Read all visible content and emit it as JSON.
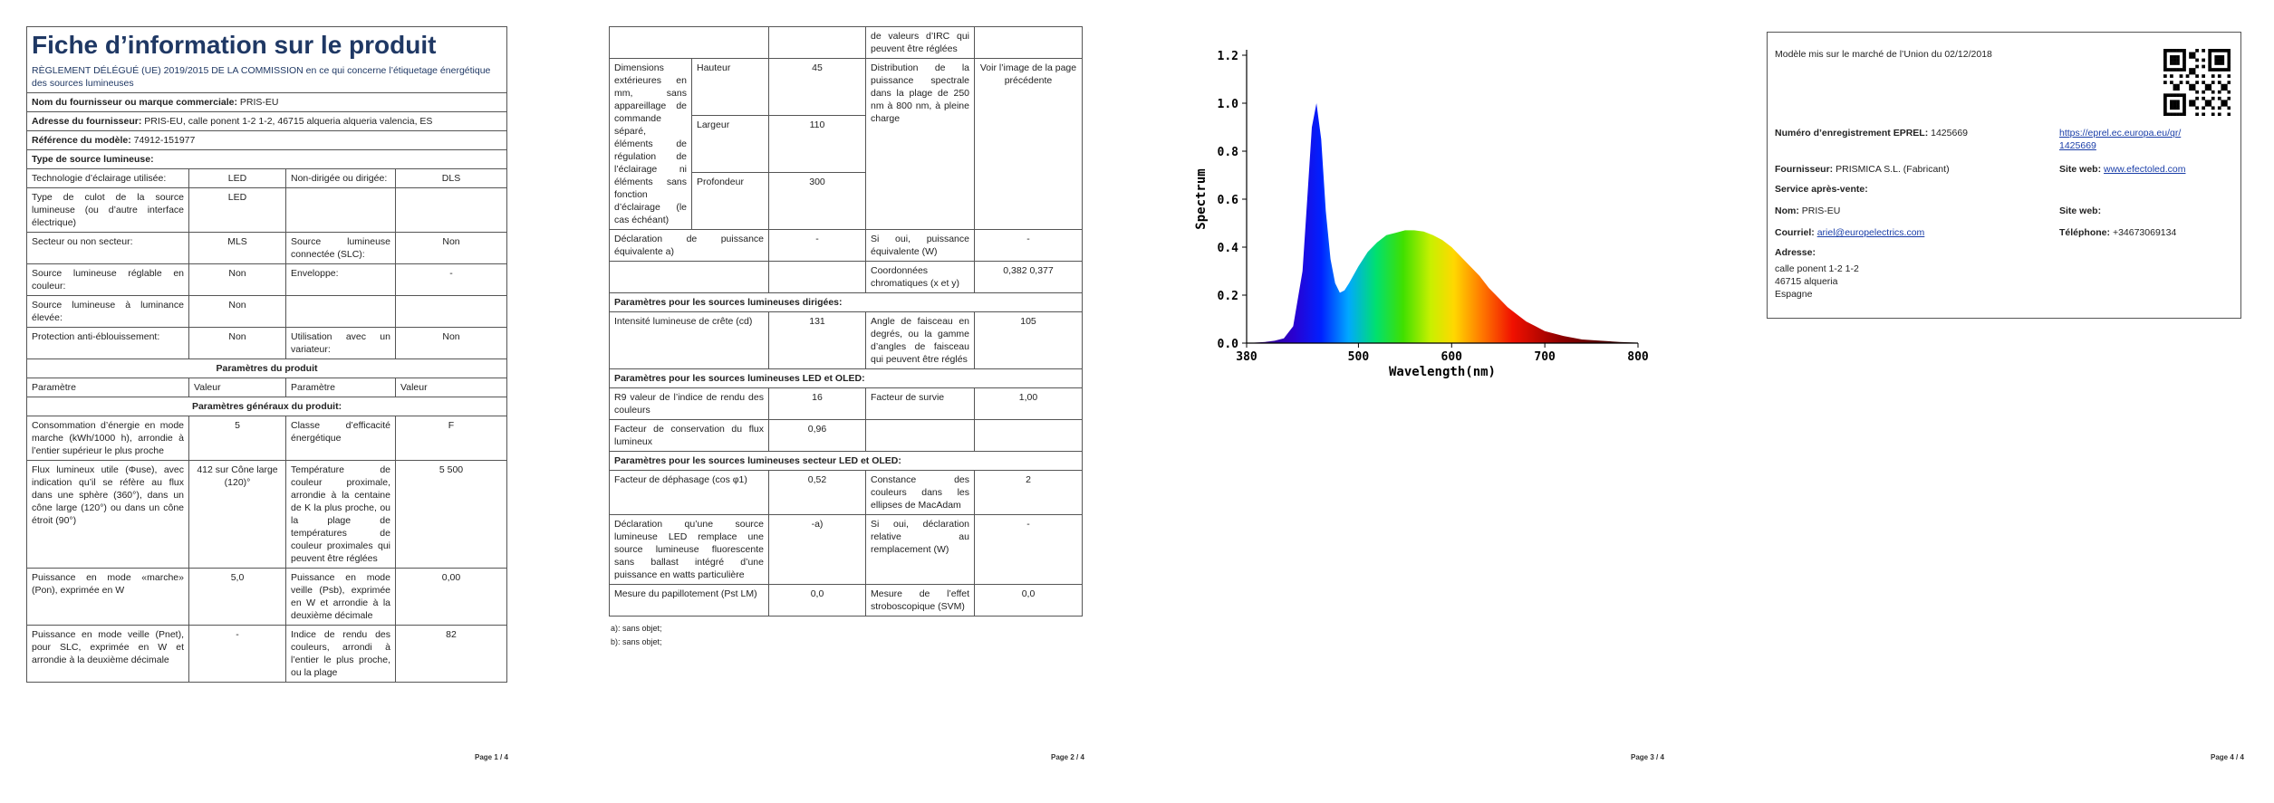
{
  "page1": {
    "title": "Fiche d’information sur le produit",
    "subtitle": "RÈGLEMENT DÉLÉGUÉ (UE) 2019/2015 DE LA COMMISSION en ce qui concerne l’étiquetage énergétique des sources lumineuses",
    "rows": [
      {
        "field": "Nom du fournisseur ou marque commerciale:",
        "value": "PRIS-EU"
      },
      {
        "field": "Adresse du fournisseur:",
        "value": "PRIS-EU, calle ponent 1-2 1-2, 46715 alqueria alqueria valencia, ES"
      },
      {
        "field": "Référence du modèle:",
        "value": "74912-151977"
      },
      {
        "field": "Type de source lumineuse:"
      },
      {
        "cells": [
          "Technologie d’éclairage utilisée:",
          "LED",
          "Non-dirigée ou dirigée:",
          "DLS"
        ]
      },
      {
        "cells": [
          "Type de culot de la source lumineuse (ou d’autre interface électrique)",
          "LED",
          null,
          null
        ]
      },
      {
        "cells": [
          "Secteur ou non secteur:",
          "MLS",
          "Source lumineuse connectée (SLC):",
          "Non"
        ]
      },
      {
        "cells": [
          "Source lumineuse réglable en couleur:",
          "Non",
          "Enveloppe:",
          "-"
        ]
      },
      {
        "cells": [
          "Source lumineuse à luminance élevée:",
          "Non",
          null,
          null
        ]
      },
      {
        "cells": [
          "Protection anti-éblouissement:",
          "Non",
          "Utilisation avec un variateur:",
          "Non"
        ]
      },
      {
        "title": "Paramètres du produit"
      },
      {
        "header": [
          "Paramètre",
          "Valeur",
          "Paramètre",
          "Valeur"
        ]
      },
      {
        "title": "Paramètres généraux du produit:"
      },
      {
        "cells": [
          "Consommation d’énergie en mode marche (kWh/1000 h), arrondie à l’entier supérieur le plus proche",
          "5",
          "Classe d’efficacité énergétique",
          "F"
        ]
      },
      {
        "cells": [
          "Flux lumineux utile (Φuse), avec indication qu’il se réfère au flux dans une sphère (360°), dans un cône large (120°) ou dans un cône étroit (90°)",
          "412 sur Cône large (120)°",
          "Température de couleur proximale, arrondie à la centaine de K la plus proche, ou la plage de températures de couleur proximales qui peuvent être réglées",
          "5 500"
        ]
      },
      {
        "cells": [
          "Puissance en mode «marche» (Pon), exprimée en W",
          "5,0",
          "Puissance en mode veille (Psb), exprimée en W et arrondie à la deuxième décimale",
          "0,00"
        ]
      },
      {
        "cells": [
          "Puissance en mode veille (Pnet), pour SLC, exprimée en W et arrondie à la deuxième décimale",
          "-",
          "Indice de rendu des couleurs, arrondi à l’entier le plus proche, ou la plage",
          "82"
        ]
      }
    ],
    "footer": "Page 1 / 4"
  },
  "page2": {
    "top": {
      "cells": [
        null,
        null,
        "de valeurs d’IRC qui peuvent être réglées",
        null
      ]
    },
    "dimensions": {
      "label": "Dimensions extérieures en mm, sans appareillage de commande séparé, éléments de régulation de l’éclairage ni éléments sans fonction d’éclairage (le cas échéant)",
      "parts": [
        {
          "name": "Hauteur",
          "value": "45"
        },
        {
          "name": "Largeur",
          "value": "110"
        },
        {
          "name": "Profondeur",
          "value": "300"
        }
      ],
      "spectrum_label": "Distribution de la puissance spectrale dans la plage de 250 nm à 800 nm, à pleine charge",
      "spectrum_value": "Voir l’image de la page précédente"
    },
    "rows": [
      {
        "cells": [
          "Déclaration de puissance équivalente a)",
          "-",
          "Si oui, puissance équivalente (W)",
          "-"
        ]
      },
      {
        "cells": [
          null,
          null,
          "Coordonnées chromatiques (x et y)",
          "0,382 0,377"
        ]
      },
      {
        "field": "Paramètres pour les sources lumineuses dirigées:"
      },
      {
        "cells": [
          "Intensité lumineuse de crête (cd)",
          "131",
          "Angle de faisceau en degrés, ou la gamme d’angles de faisceau qui peuvent être réglés",
          "105"
        ]
      },
      {
        "field": "Paramètres pour les sources lumineuses LED et OLED:"
      },
      {
        "cells": [
          "R9 valeur de l’indice de rendu des couleurs",
          "16",
          "Facteur de survie",
          "1,00"
        ]
      },
      {
        "cells": [
          "Facteur de conservation du flux lumineux",
          "0,96",
          null,
          null
        ]
      },
      {
        "field": "Paramètres pour les sources lumineuses secteur LED et OLED:"
      },
      {
        "cells": [
          "Facteur de déphasage (cos φ1)",
          "0,52",
          "Constance des couleurs dans les ellipses de MacAdam",
          "2"
        ]
      },
      {
        "cells": [
          "Déclaration qu’une source lumineuse LED remplace une source lumineuse fluorescente sans ballast intégré d’une puissance en watts particulière",
          "-a)",
          "Si oui, déclaration relative au remplacement (W)",
          "-"
        ]
      },
      {
        "cells": [
          "Mesure du papillotement (Pst LM)",
          "0,0",
          "Mesure de l’effet stroboscopique (SVM)",
          "0,0"
        ]
      }
    ],
    "notes": [
      "a): sans objet;",
      "b): sans objet;"
    ],
    "footer": "Page 2 / 4"
  },
  "chart_data": {
    "type": "area",
    "xlabel": "Wavelength(nm)",
    "ylabel": "Spectrum",
    "x": [
      380,
      400,
      410,
      420,
      430,
      440,
      445,
      450,
      455,
      460,
      465,
      470,
      475,
      480,
      485,
      490,
      500,
      510,
      520,
      530,
      540,
      550,
      560,
      570,
      580,
      590,
      600,
      610,
      620,
      630,
      640,
      650,
      660,
      670,
      680,
      690,
      700,
      720,
      740,
      760,
      780,
      800
    ],
    "values": [
      0,
      0.005,
      0.01,
      0.02,
      0.07,
      0.3,
      0.6,
      0.9,
      1.0,
      0.85,
      0.55,
      0.35,
      0.25,
      0.21,
      0.22,
      0.25,
      0.32,
      0.38,
      0.42,
      0.45,
      0.46,
      0.47,
      0.47,
      0.465,
      0.45,
      0.43,
      0.4,
      0.36,
      0.32,
      0.28,
      0.23,
      0.19,
      0.15,
      0.12,
      0.09,
      0.07,
      0.05,
      0.03,
      0.015,
      0.01,
      0.005,
      0.002
    ],
    "xlim": [
      380,
      800
    ],
    "ylim": [
      0,
      1.2
    ],
    "xticks": [
      380,
      500,
      600,
      700,
      800
    ],
    "yticks": [
      {
        "value": 0,
        "label": "0.0"
      },
      0.2,
      0.4,
      0.6,
      0.8,
      {
        "value": 1,
        "label": "1.0"
      },
      1.2
    ]
  },
  "page3": {
    "footer": "Page 3 / 4"
  },
  "page4": {
    "market": "Modèle mis sur le marché de l’Union du 02/12/2018",
    "eprel_label": "Numéro d’enregistrement EPREL:",
    "eprel_value": "1425669",
    "eprel_link": "https://eprel.ec.europa.eu/qr/1425669",
    "supplier_label": "Fournisseur:",
    "supplier_value": "PRISMICA S.L. (Fabricant)",
    "site_label": "Site web:",
    "site_value": "www.efectoled.com",
    "service": "Service après-vente:",
    "name_label": "Nom:",
    "name_value": "PRIS-EU",
    "site2_label": "Site web:",
    "mail_label": "Courriel:",
    "mail_value": "ariel@europelectrics.com",
    "phone_label": "Téléphone:",
    "phone_value": "+34673069134",
    "address_label": "Adresse:",
    "address": [
      "calle ponent 1-2 1-2",
      "46715 alqueria",
      "Espagne"
    ],
    "footer": "Page 4 / 4"
  }
}
